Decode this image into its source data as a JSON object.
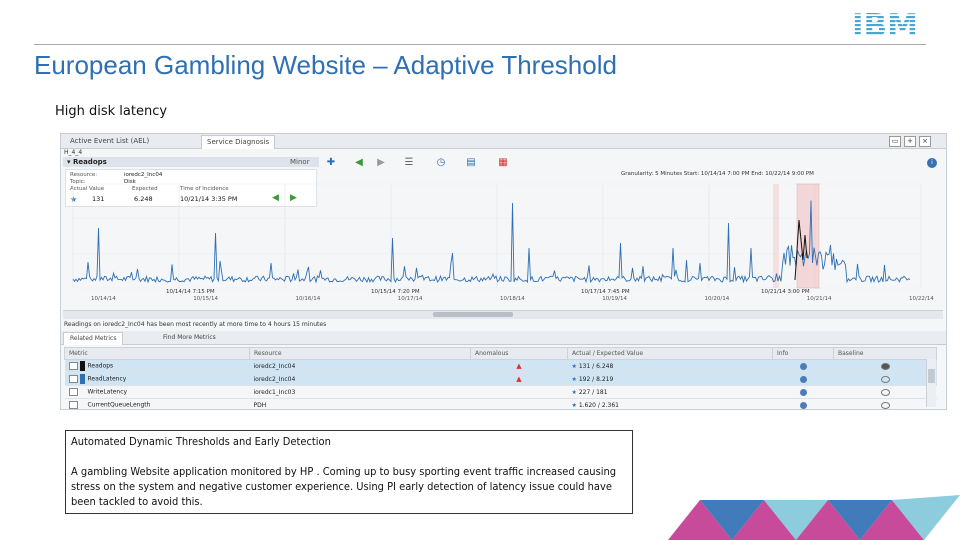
{
  "brand": {
    "logo_text": "IBM",
    "color": "#4aa6cf"
  },
  "slide": {
    "title": "European Gambling Website – Adaptive Threshold",
    "subtitle": "High disk latency"
  },
  "app": {
    "tabs": [
      "Active Event List (AEL)",
      "Service Diagnosis"
    ],
    "breadcrumb": "H_4_4",
    "panel": {
      "name": "▾ Readops",
      "severity": "Minor"
    },
    "detail": {
      "resource_label": "Resource:",
      "resource_value": "ioredc2_Inc04",
      "topic_label": "Topic:",
      "topic_value": "Disk",
      "actual_label": "Actual Value",
      "expected_label": "Expected",
      "time_label": "Time of Incidence",
      "actual_value": "131",
      "expected_value": "6.248",
      "time_value": "10/21/14 3:35 PM"
    },
    "granularity": "Granularity: 5 Minutes   Start: 10/14/14 7:00 PM   End: 10/22/14 9:00 PM",
    "reading_line": "Readings on ioredc2_Inc04 has been most recently at more time to 4 hours 15 minutes",
    "subtabs": [
      "Related Metrics",
      "Find More Metrics"
    ],
    "table": {
      "headers": [
        "Metric",
        "Resource",
        "Anomalous",
        "Actual / Expected Value",
        "Info",
        "Baseline"
      ],
      "rows": [
        {
          "metric": "Readops",
          "resource": "ioredc2_Inc04",
          "actual_expected": "131 / 6.248",
          "swatch": "#111111",
          "selected": true,
          "anomalous": true
        },
        {
          "metric": "ReadLatency",
          "resource": "ioredc2_Inc04",
          "actual_expected": "192 / 8.219",
          "swatch": "#2f6fb3",
          "selected": true,
          "anomalous": true
        },
        {
          "metric": "WriteLatency",
          "resource": "ioredc1_Inc03",
          "actual_expected": "227 / 181",
          "swatch": "",
          "selected": false,
          "anomalous": false
        },
        {
          "metric": "CurrentQueueLength",
          "resource": "PDH",
          "actual_expected": "1.620 / 2.361",
          "swatch": "",
          "selected": false,
          "anomalous": false
        }
      ]
    }
  },
  "chart_data": {
    "type": "line",
    "title": "",
    "xlabel": "",
    "ylabel": "",
    "x_tick_labels": [
      "10/14/14 7:15 PM",
      "10/15/14 7:20 PM",
      "10/17/14 7:45 PM",
      "10/21/14 3:00 PM"
    ],
    "date_ticks": [
      "10/14/14",
      "10/15/14",
      "10/16/14",
      "10/17/14",
      "10/18/14",
      "10/19/14",
      "10/20/14",
      "10/21/14",
      "10/22/14"
    ],
    "series": [
      {
        "color": "#2f6fb3"
      },
      {
        "color": "#111111"
      }
    ],
    "highlight_band_color": "#f3b8b8",
    "grid": true
  },
  "textbox": {
    "heading": "Automated Dynamic Thresholds and Early Detection",
    "body": "A gambling Website application monitored by HP . Coming up to busy sporting event traffic increased causing stress on the system and negative customer experience. Using PI early detection of latency issue could have been tackled to avoid this."
  },
  "decor_colors": [
    "#c2368f",
    "#2e6db4",
    "#7fc6d8"
  ]
}
